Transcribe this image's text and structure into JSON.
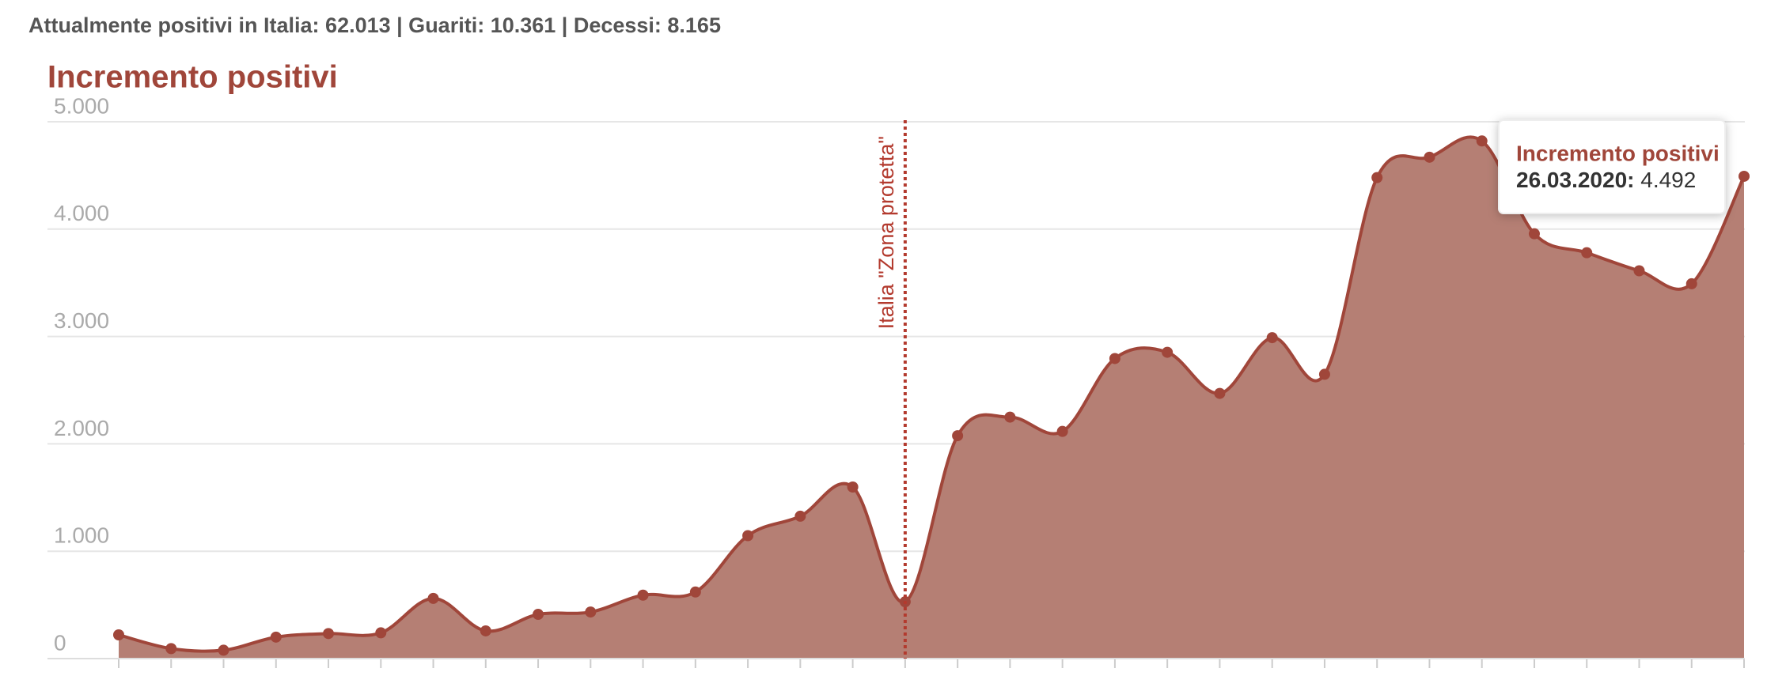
{
  "header": {
    "text": "Attualmente positivi in Italia: 62.013 | Guariti: 10.361 | Decessi: 8.165"
  },
  "chart_data": {
    "type": "area",
    "title": "Incremento positivi",
    "categories": [
      null,
      null,
      null,
      null,
      null,
      null,
      null,
      null,
      null,
      null,
      null,
      null,
      null,
      null,
      null,
      null,
      null,
      null,
      null,
      null,
      null,
      null,
      null,
      null,
      null,
      null,
      null,
      null,
      null,
      null,
      null,
      "26.03.2020"
    ],
    "series": [
      {
        "name": "Incremento positivi",
        "color": "#a0463a",
        "values": [
          221,
          93,
          78,
          200,
          233,
          240,
          561,
          258,
          412,
          434,
          591,
          620,
          1145,
          1326,
          1598,
          529,
          2076,
          2249,
          2116,
          2795,
          2853,
          2470,
          2989,
          2648,
          4480,
          4670,
          4821,
          3957,
          3780,
          3612,
          3491,
          4492
        ],
        "value_labels": [
          null,
          null,
          null,
          null,
          null,
          null,
          null,
          null,
          null,
          null,
          null,
          null,
          null,
          null,
          null,
          null,
          null,
          null,
          null,
          null,
          null,
          null,
          null,
          null,
          null,
          null,
          null,
          null,
          null,
          null,
          null,
          "4.492"
        ]
      }
    ],
    "ylim": [
      0,
      5000
    ],
    "yticks": [
      0,
      {
        "value": 1000,
        "label": "1.000"
      },
      {
        "value": 2000,
        "label": "2.000"
      },
      {
        "value": 3000,
        "label": "3.000"
      },
      {
        "value": 4000,
        "label": "4.000"
      },
      {
        "value": 5000,
        "label": "5.000"
      }
    ],
    "grid": true,
    "annotations": [
      {
        "label": "Italia \"Zona protetta\"",
        "index": 15
      }
    ]
  }
}
